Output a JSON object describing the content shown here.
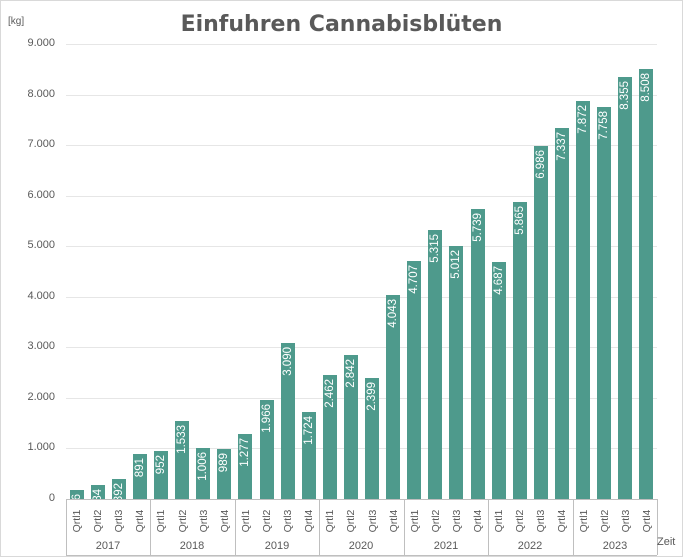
{
  "chart_data": {
    "type": "bar",
    "title": "Einfuhren Cannabisblüten",
    "ylabel": "[kg]",
    "xlabel": "Zeit",
    "ylim": [
      0,
      9000
    ],
    "yticks": [
      "0",
      "1.000",
      "2.000",
      "3.000",
      "4.000",
      "5.000",
      "6.000",
      "7.000",
      "8.000",
      "9.000"
    ],
    "grid": true,
    "legend": null,
    "color": "#4e9a8c",
    "years": [
      "2017",
      "2018",
      "2019",
      "2020",
      "2021",
      "2022",
      "2023"
    ],
    "quarter_labels": [
      "Qrtl1",
      "Qrtl2",
      "Qrtl3",
      "Qrtl4"
    ],
    "categories": [
      "2017 Qrtl1",
      "2017 Qrtl2",
      "2017 Qrtl3",
      "2017 Qrtl4",
      "2018 Qrtl1",
      "2018 Qrtl2",
      "2018 Qrtl3",
      "2018 Qrtl4",
      "2019 Qrtl1",
      "2019 Qrtl2",
      "2019 Qrtl3",
      "2019 Qrtl4",
      "2020 Qrtl1",
      "2020 Qrtl2",
      "2020 Qrtl3",
      "2020 Qrtl4",
      "2021 Qrtl1",
      "2021 Qrtl2",
      "2021 Qrtl3",
      "2021 Qrtl4",
      "2022 Qrtl1",
      "2022 Qrtl2",
      "2022 Qrtl3",
      "2022 Qrtl4",
      "2023 Qrtl1",
      "2023 Qrtl2",
      "2023 Qrtl3",
      "2023 Qrtl4"
    ],
    "values": [
      186,
      284,
      392,
      891,
      952,
      1533,
      1006,
      989,
      1277,
      1966,
      3090,
      1724,
      2462,
      2842,
      2399,
      4043,
      4707,
      5315,
      5012,
      5739,
      4687,
      5865,
      6986,
      7337,
      7872,
      7758,
      8355,
      8508
    ],
    "value_labels": [
      "186",
      "284",
      "392",
      "891",
      "952",
      "1.533",
      "1.006",
      "989",
      "1.277",
      "1.966",
      "3.090",
      "1.724",
      "2.462",
      "2.842",
      "2.399",
      "4.043",
      "4.707",
      "5.315",
      "5.012",
      "5.739",
      "4.687",
      "5.865",
      "6.986",
      "7.337",
      "7.872",
      "7.758",
      "8.355",
      "8.508"
    ]
  }
}
